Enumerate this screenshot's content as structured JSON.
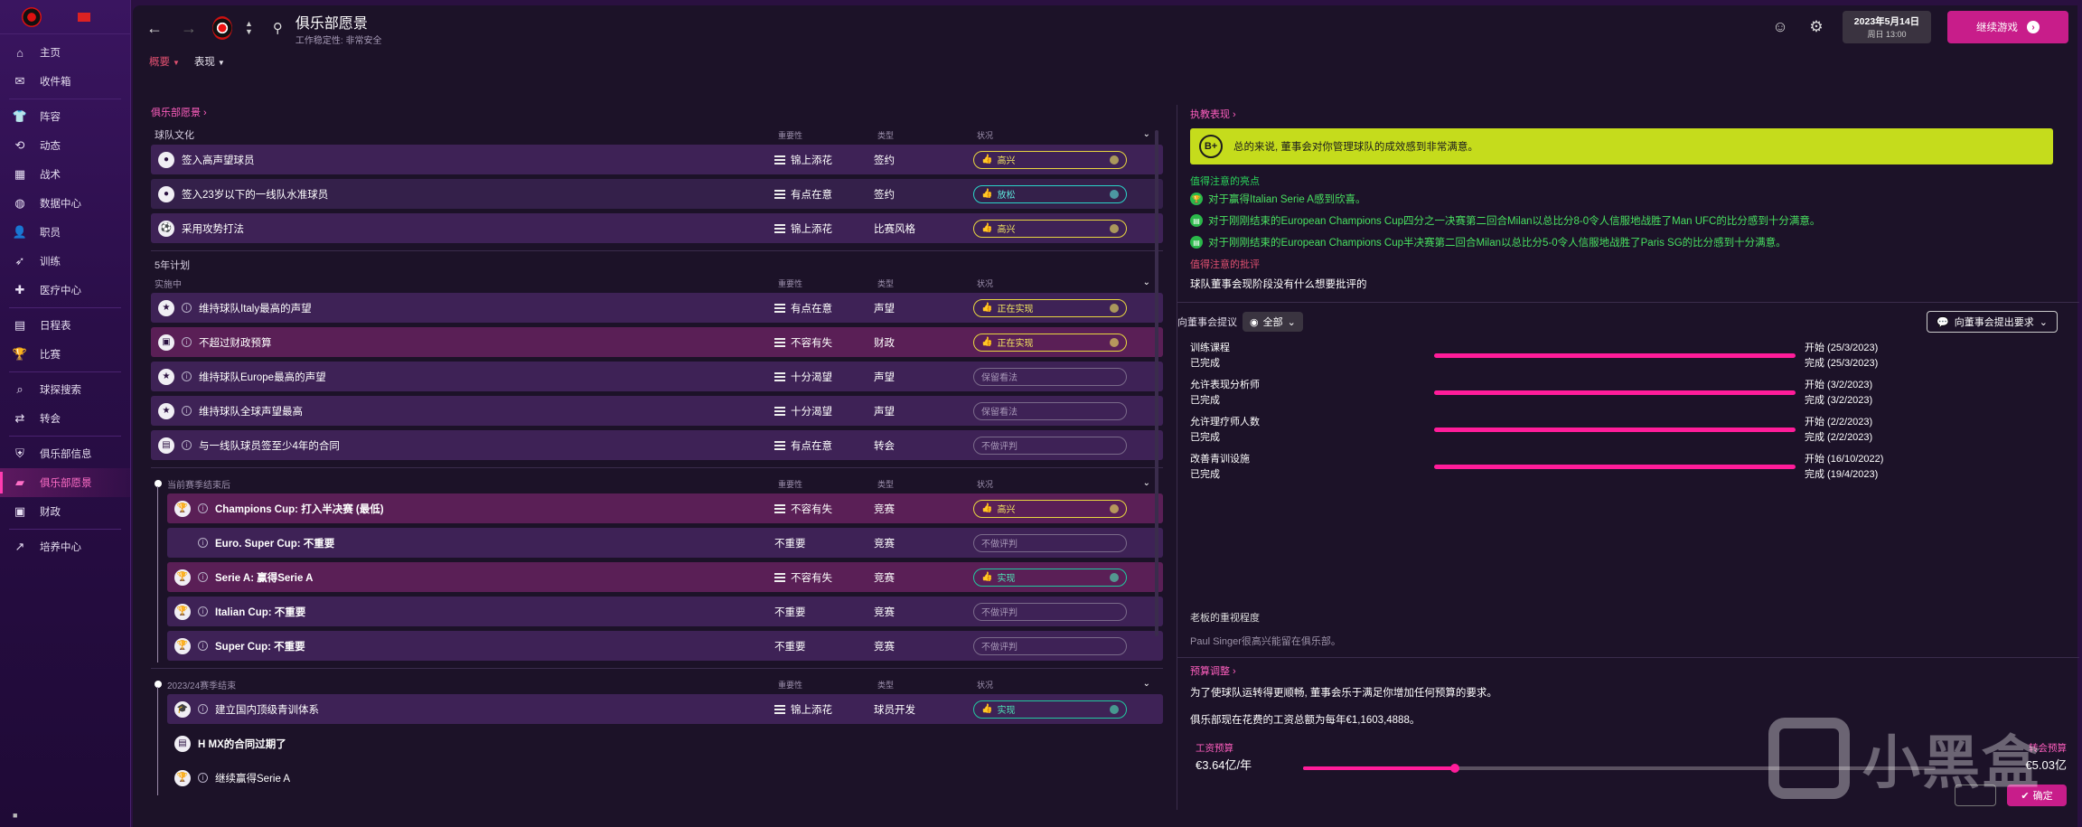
{
  "sidebar": {
    "items": [
      {
        "label": "主页",
        "icon": "home-icon"
      },
      {
        "label": "收件箱",
        "icon": "inbox-icon"
      },
      {
        "label": "阵容",
        "icon": "squad-icon"
      },
      {
        "label": "动态",
        "icon": "dynamics-icon"
      },
      {
        "label": "战术",
        "icon": "tactics-icon"
      },
      {
        "label": "数据中心",
        "icon": "data-hub-icon"
      },
      {
        "label": "职员",
        "icon": "staff-icon"
      },
      {
        "label": "训练",
        "icon": "training-icon"
      },
      {
        "label": "医疗中心",
        "icon": "medical-icon"
      },
      {
        "label": "日程表",
        "icon": "schedule-icon"
      },
      {
        "label": "比赛",
        "icon": "trophy-icon"
      },
      {
        "label": "球探搜索",
        "icon": "scouting-icon"
      },
      {
        "label": "转会",
        "icon": "transfers-icon"
      },
      {
        "label": "俱乐部信息",
        "icon": "club-info-icon"
      },
      {
        "label": "俱乐部愿景",
        "icon": "club-vision-icon"
      },
      {
        "label": "财政",
        "icon": "finances-icon"
      },
      {
        "label": "培养中心",
        "icon": "development-icon"
      }
    ]
  },
  "header": {
    "title": "俱乐部愿景",
    "subtitle": "工作稳定性: 非常安全",
    "date_line1": "2023年5月14日",
    "date_line2": "周日 13:00",
    "continue_label": "继续游戏"
  },
  "subtabs": [
    {
      "label": "概要"
    },
    {
      "label": "表现"
    }
  ],
  "left": {
    "crumb": "俱乐部愿景 ›",
    "col_importance": "重要性",
    "col_type": "类型",
    "col_status": "状况",
    "culture": {
      "title": "球队文化",
      "rows": [
        {
          "name": "签入高声望球员",
          "importance": "锦上添花",
          "type": "签约",
          "status": "高兴",
          "kind": "happy"
        },
        {
          "name": "签入23岁以下的一线队水准球员",
          "importance": "有点在意",
          "type": "签约",
          "status": "放松",
          "kind": "calm"
        },
        {
          "name": "采用攻势打法",
          "importance": "锦上添花",
          "type": "比赛风格",
          "status": "高兴",
          "kind": "happy"
        }
      ]
    },
    "five_year": {
      "title": "5年计划",
      "subtitle": "实施中",
      "rows": [
        {
          "name": "维持球队Italy最高的声望",
          "importance": "有点在意",
          "type": "声望",
          "status": "正在实现",
          "kind": "happy"
        },
        {
          "name": "不超过财政预算",
          "importance": "不容有失",
          "type": "财政",
          "status": "正在实现",
          "kind": "happy"
        },
        {
          "name": "维持球队Europe最高的声望",
          "importance": "十分渴望",
          "type": "声望",
          "status": "保留看法",
          "kind": "neutral"
        },
        {
          "name": "维持球队全球声望最高",
          "importance": "十分渴望",
          "type": "声望",
          "status": "保留看法",
          "kind": "neutral"
        },
        {
          "name": "与一线队球员签至少4年的合同",
          "importance": "有点在意",
          "type": "转会",
          "status": "不做评判",
          "kind": "neutral"
        }
      ]
    },
    "season_end": {
      "title": "当前赛季结束后",
      "rows": [
        {
          "name": "Champions Cup: 打入半决赛 (最低)",
          "importance": "不容有失",
          "type": "竞赛",
          "status": "高兴",
          "kind": "happy"
        },
        {
          "name": "Euro. Super Cup: 不重要",
          "importance": "不重要",
          "type": "竞赛",
          "status": "不做评判",
          "kind": "neutral"
        },
        {
          "name": "Serie A: 赢得Serie A",
          "importance": "不容有失",
          "type": "竞赛",
          "status": "实现",
          "kind": "ok"
        },
        {
          "name": "Italian Cup: 不重要",
          "importance": "不重要",
          "type": "竞赛",
          "status": "不做评判",
          "kind": "neutral"
        },
        {
          "name": "Super Cup: 不重要",
          "importance": "不重要",
          "type": "竞赛",
          "status": "不做评判",
          "kind": "neutral"
        }
      ]
    },
    "season_2324": {
      "title": "2023/24赛季结束",
      "rows": [
        {
          "name": "建立国内顶级青训体系",
          "importance": "锦上添花",
          "type": "球员开发",
          "status": "实现",
          "kind": "ok"
        }
      ],
      "extra": [
        "H MX的合同过期了",
        "继续赢得Serie A"
      ]
    }
  },
  "right": {
    "perf_crumb": "执教表现 ›",
    "grade": "B+",
    "summary": "总的来说, 董事会对你管理球队的成效感到非常满意。",
    "highlights_title": "值得注意的亮点",
    "highlights": [
      "对于赢得Italian Serie A感到欣喜。",
      "对于刚刚结束的European Champions Cup四分之一决赛第二回合Milan以总比分8-0令人信服地战胜了Man UFC的比分感到十分满意。",
      "对于刚刚结束的European Champions Cup半决赛第二回合Milan以总比分5-0令人信服地战胜了Paris SG的比分感到十分满意。"
    ],
    "criticism_title": "值得注意的批评",
    "criticism_text": "球队董事会现阶段没有什么想要批评的",
    "requests_label": "向董事会提议",
    "filter_label": "全部",
    "make_request_label": "向董事会提出要求",
    "requests": [
      {
        "name": "训练课程",
        "state": "已完成",
        "start": "开始 (25/3/2023)",
        "end": "完成 (25/3/2023)"
      },
      {
        "name": "允许表现分析师",
        "state": "已完成",
        "start": "开始 (3/2/2023)",
        "end": "完成 (3/2/2023)"
      },
      {
        "name": "允许理疗师人数",
        "state": "已完成",
        "start": "开始 (2/2/2023)",
        "end": "完成 (2/2/2023)"
      },
      {
        "name": "改善青训设施",
        "state": "已完成",
        "start": "开始 (16/10/2022)",
        "end": "完成 (19/4/2023)"
      }
    ],
    "owner_title": "老板的重视程度",
    "owner_text": "Paul Singer很高兴能留在俱乐部。",
    "budget_crumb": "预算调整 ›",
    "budget_text1": "为了使球队运转得更顺畅, 董事会乐于满足你增加任何预算的要求。",
    "budget_text2": "俱乐部现在花费的工资总额为每年€1,1603,4888。",
    "wage_label": "工资预算",
    "wage_value": "€3.64亿/年",
    "transfer_label": "转会预算",
    "transfer_value": "€5.03亿",
    "slider_fraction": 0.24,
    "confirm_label": "确定"
  },
  "watermark": "小黑盒",
  "colors": {
    "accent": "#ff1c9a",
    "brand": "#c81d8a",
    "grade_bg": "#c5dc1c",
    "highlight": "#48e060"
  }
}
